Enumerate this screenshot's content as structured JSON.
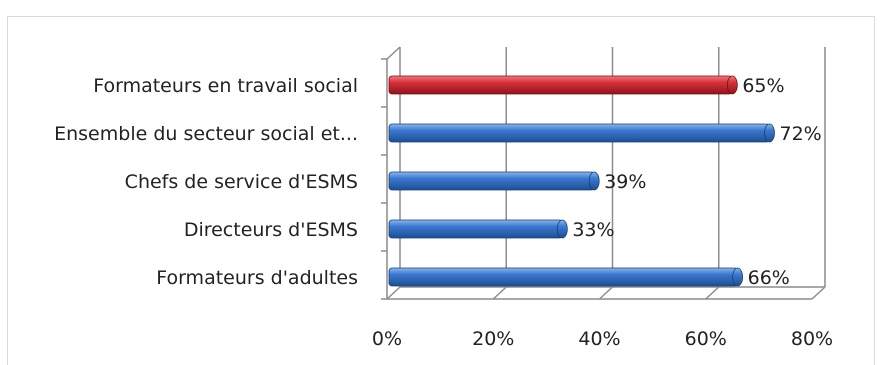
{
  "chart_data": {
    "type": "bar",
    "orientation": "horizontal",
    "categories": [
      "Formateurs en travail social",
      "Ensemble du secteur social et...",
      "Chefs de service d'ESMS",
      "Directeurs d'ESMS",
      "Formateurs d'adultes"
    ],
    "values": [
      65,
      72,
      39,
      33,
      66
    ],
    "value_labels": [
      "65%",
      "72%",
      "39%",
      "33%",
      "66%"
    ],
    "bar_colors": [
      "#c0232b",
      "#2e6bb8",
      "#2e6bb8",
      "#2e6bb8",
      "#2e6bb8"
    ],
    "xlim": [
      0,
      80
    ],
    "xticks": [
      0,
      20,
      40,
      60,
      80
    ],
    "xtick_labels": [
      "0%",
      "20%",
      "40%",
      "60%",
      "80%"
    ],
    "grid": true,
    "style": "3d"
  }
}
